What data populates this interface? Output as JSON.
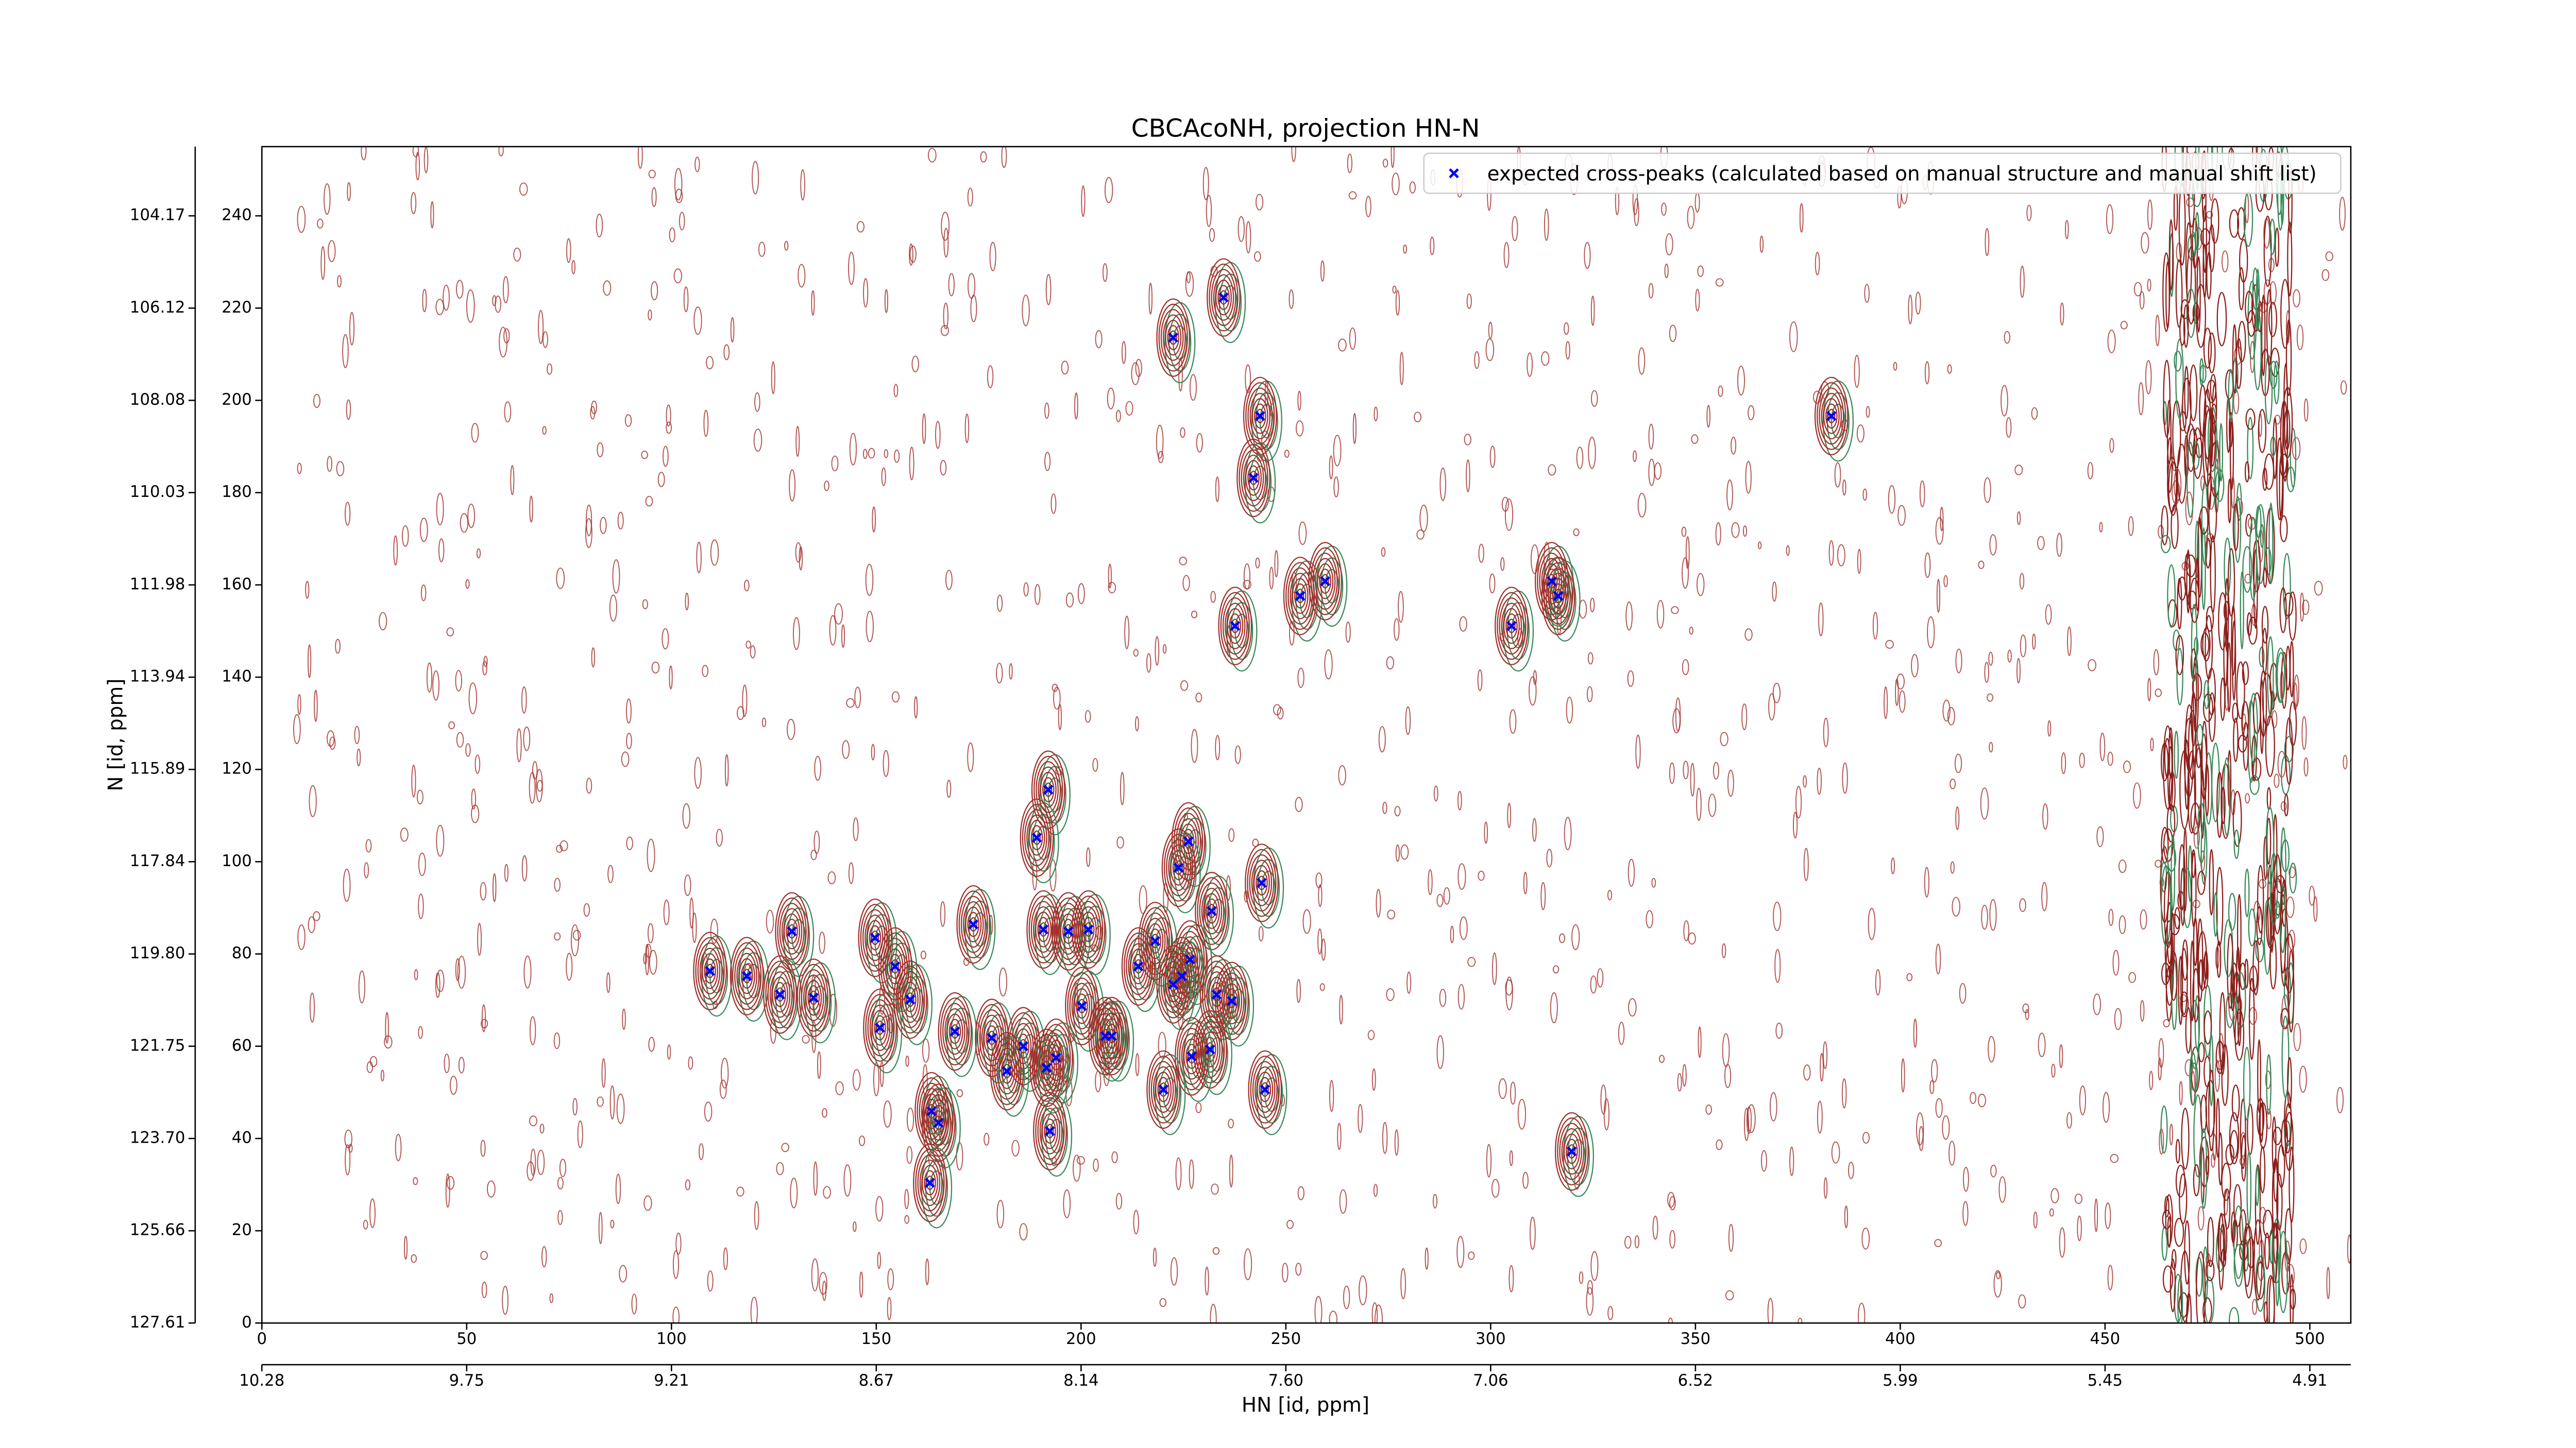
{
  "chart_data": {
    "type": "scatter",
    "title": "CBCAcoNH, projection HN-N",
    "x_label": "HN [id, ppm]",
    "y_label": "N [id, ppm]",
    "xlim": [
      0,
      510
    ],
    "ylim": [
      0,
      255
    ],
    "xticks": [
      0,
      50,
      100,
      150,
      200,
      250,
      300,
      350,
      400,
      450,
      500
    ],
    "yticks": [
      0,
      20,
      40,
      60,
      80,
      100,
      120,
      140,
      160,
      180,
      200,
      220,
      240
    ],
    "x2ticks": [
      {
        "value": 0,
        "label": "10.28"
      },
      {
        "value": 50,
        "label": "9.75"
      },
      {
        "value": 100,
        "label": "9.21"
      },
      {
        "value": 150,
        "label": "8.67"
      },
      {
        "value": 200,
        "label": "8.14"
      },
      {
        "value": 250,
        "label": "7.60"
      },
      {
        "value": 300,
        "label": "7.06"
      },
      {
        "value": 350,
        "label": "6.52"
      },
      {
        "value": 400,
        "label": "5.99"
      },
      {
        "value": 450,
        "label": "5.45"
      },
      {
        "value": 500,
        "label": "4.91"
      }
    ],
    "y2ticks": [
      {
        "value": 0,
        "label": "127.61"
      },
      {
        "value": 20,
        "label": "125.66"
      },
      {
        "value": 40,
        "label": "123.70"
      },
      {
        "value": 60,
        "label": "121.75"
      },
      {
        "value": 80,
        "label": "119.80"
      },
      {
        "value": 100,
        "label": "117.84"
      },
      {
        "value": 120,
        "label": "115.89"
      },
      {
        "value": 140,
        "label": "113.94"
      },
      {
        "value": 160,
        "label": "111.98"
      },
      {
        "value": 180,
        "label": "110.03"
      },
      {
        "value": 200,
        "label": "108.08"
      },
      {
        "value": 220,
        "label": "106.12"
      },
      {
        "value": 240,
        "label": "104.17"
      }
    ],
    "legend": "upper right",
    "x": [
      222.5,
      234.8,
      243.7,
      242.1,
      237.6,
      253.5,
      259.6,
      305.1,
      314.9,
      316.5,
      383.2,
      319.8,
      192.0,
      189.2,
      226.2,
      223.8,
      244.1,
      231.9,
      173.7,
      190.8,
      196.9,
      201.8,
      129.4,
      149.7,
      218.1,
      226.6,
      214.0,
      154.6,
      109.4,
      118.4,
      224.6,
      222.5,
      233.1,
      236.8,
      126.5,
      134.7,
      158.3,
      200.2,
      150.9,
      169.2,
      178.2,
      205.9,
      207.5,
      185.9,
      231.5,
      193.9,
      227.0,
      181.9,
      191.6,
      220.1,
      244.9,
      163.5,
      165.2,
      192.4,
      163.1
    ],
    "series": [
      {
        "name": "expected cross-peaks (calculated based on manual structure and manual shift list)",
        "color": "#0000ff",
        "values": [
          213.6,
          222.3,
          196.6,
          183.2,
          151.1,
          157.6,
          160.8,
          151.1,
          160.8,
          157.6,
          196.6,
          37.2,
          115.6,
          105.2,
          104.4,
          98.7,
          95.4,
          89.3,
          86.4,
          85.3,
          84.9,
          85.3,
          84.9,
          83.5,
          82.8,
          78.8,
          77.3,
          77.3,
          76.3,
          75.2,
          75.2,
          73.4,
          71.2,
          69.8,
          71.2,
          70.5,
          70.1,
          68.7,
          64.0,
          63.2,
          61.8,
          62.2,
          62.2,
          60.0,
          59.3,
          57.5,
          57.8,
          54.6,
          55.3,
          50.6,
          50.6,
          45.9,
          43.4,
          41.6,
          30.4
        ]
      }
    ]
  }
}
